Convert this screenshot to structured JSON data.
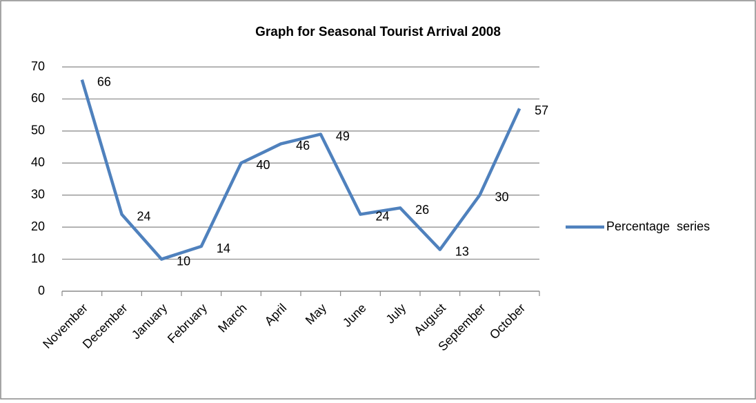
{
  "chart_data": {
    "type": "line",
    "title": "Graph for Seasonal Tourist Arrival 2008",
    "categories": [
      "November",
      "December",
      "January",
      "February",
      "March",
      "April",
      "May",
      "June",
      "July",
      "August",
      "September",
      "October"
    ],
    "series": [
      {
        "name": "Percentage  series",
        "color": "#4f81bd",
        "values": [
          66,
          24,
          10,
          14,
          40,
          46,
          49,
          24,
          26,
          13,
          30,
          57
        ]
      }
    ],
    "ylim": [
      0,
      70
    ],
    "yticks": [
      0,
      10,
      20,
      30,
      40,
      50,
      60,
      70
    ],
    "grid": true,
    "legend": "right",
    "data_labels": true
  }
}
